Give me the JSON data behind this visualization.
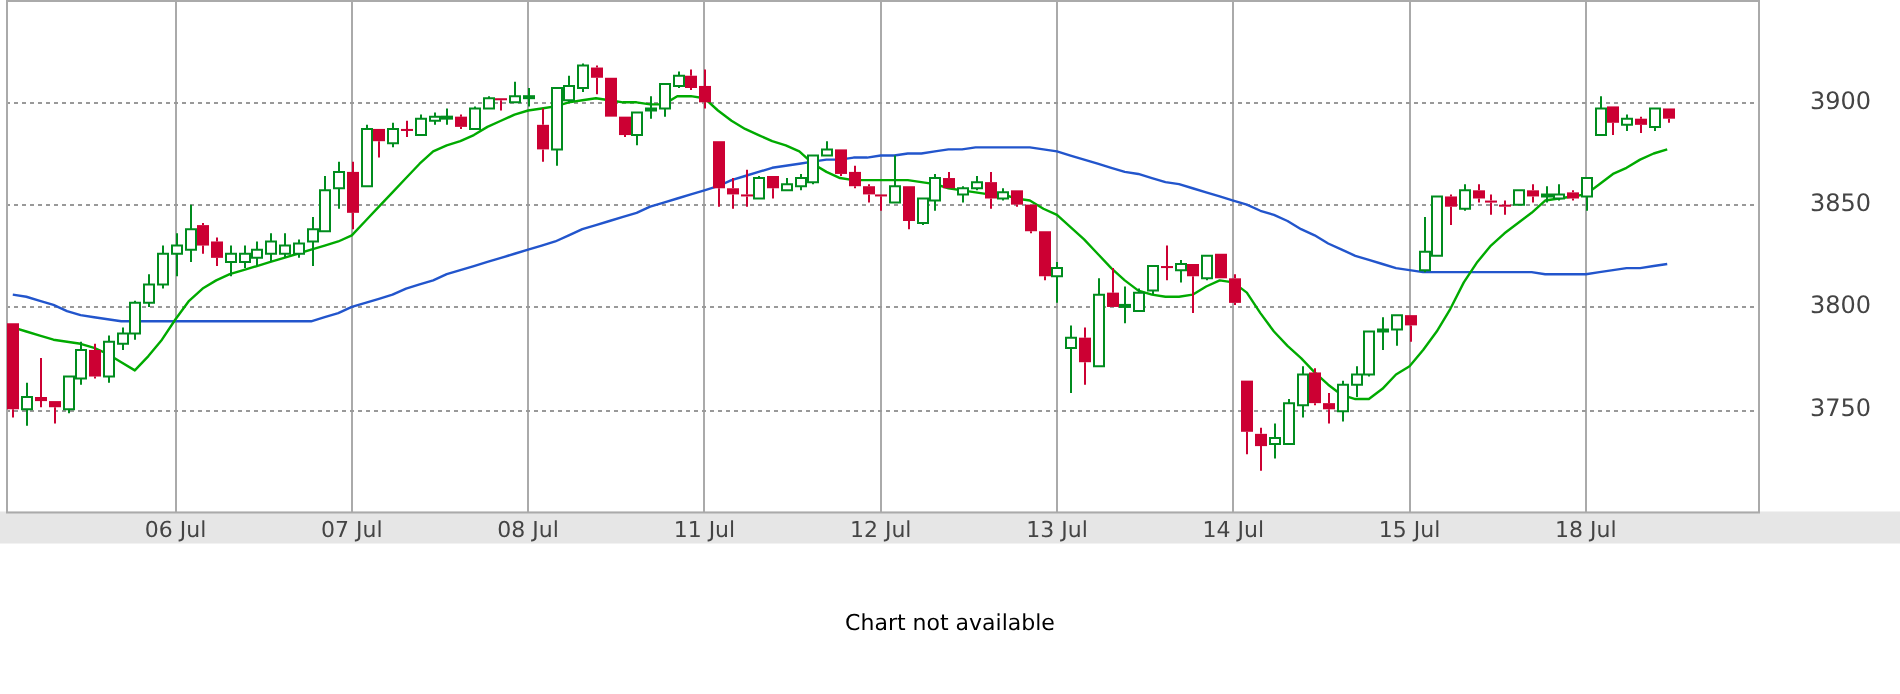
{
  "chart_data": {
    "type": "candlestick",
    "categories": [
      null,
      null,
      null,
      null,
      null,
      null,
      null,
      null,
      null,
      null,
      null,
      null,
      "06 Jul",
      null,
      null,
      null,
      null,
      null,
      null,
      null,
      null,
      null,
      null,
      null,
      null,
      "07 Jul",
      null,
      null,
      null,
      null,
      null,
      null,
      null,
      null,
      null,
      null,
      null,
      null,
      "08 Jul",
      null,
      null,
      null,
      null,
      null,
      null,
      null,
      null,
      null,
      null,
      null,
      null,
      "11 Jul",
      null,
      null,
      null,
      null,
      null,
      null,
      null,
      null,
      null,
      null,
      null,
      null,
      "12 Jul",
      null,
      null,
      null,
      null,
      null,
      null,
      null,
      null,
      null,
      null,
      null,
      null,
      "13 Jul",
      null,
      null,
      null,
      null,
      null,
      null,
      null,
      null,
      null,
      null,
      null,
      null,
      "14 Jul",
      null,
      null,
      null,
      null,
      null,
      null,
      null,
      null,
      null,
      null,
      null,
      null,
      "15 Jul",
      null,
      null,
      null,
      null,
      null,
      null,
      null,
      null,
      null,
      null,
      null,
      null,
      "18 Jul",
      null,
      null,
      null,
      null,
      null,
      null
    ],
    "ohlc": [
      [
        3792,
        3792,
        3746,
        3750
      ],
      [
        3750,
        3763,
        3742,
        3756
      ],
      [
        3756,
        3775,
        3751,
        3754
      ],
      [
        3754,
        3754,
        3743,
        3751
      ],
      [
        3750,
        3766,
        3748,
        3766
      ],
      [
        3765,
        3783,
        3762,
        3779
      ],
      [
        3779,
        3782,
        3765,
        3766
      ],
      [
        3766,
        3786,
        3763,
        3783
      ],
      [
        3782,
        3790,
        3779,
        3787
      ],
      [
        3787,
        3803,
        3784,
        3802
      ],
      [
        3802,
        3816,
        3800,
        3811
      ],
      [
        3811,
        3830,
        3809,
        3826
      ],
      [
        3826,
        3836,
        3815,
        3830
      ],
      [
        3828,
        3850,
        3822,
        3838
      ],
      [
        3840,
        3841,
        3826,
        3830
      ],
      [
        3832,
        3834,
        3820,
        3824
      ],
      [
        3822,
        3830,
        3815,
        3826
      ],
      [
        3822,
        3830,
        3819,
        3826
      ],
      [
        3824,
        3832,
        3820,
        3828
      ],
      [
        3826,
        3836,
        3822,
        3832
      ],
      [
        3826,
        3836,
        3824,
        3830
      ],
      [
        3826,
        3833,
        3824,
        3831
      ],
      [
        3832,
        3844,
        3820,
        3838
      ],
      [
        3837,
        3864,
        3837,
        3857
      ],
      [
        3858,
        3871,
        3848,
        3866
      ],
      [
        3866,
        3871,
        3838,
        3846
      ],
      [
        3859,
        3889,
        3859,
        3887
      ],
      [
        3887,
        3887,
        3873,
        3881
      ],
      [
        3880,
        3890,
        3878,
        3887
      ],
      [
        3887,
        3891,
        3883,
        3886
      ],
      [
        3884,
        3894,
        3884,
        3892
      ],
      [
        3891,
        3895,
        3889,
        3893
      ],
      [
        3893,
        3897,
        3889,
        3893
      ],
      [
        3893,
        3894,
        3887,
        3888
      ],
      [
        3887,
        3898,
        3887,
        3897
      ],
      [
        3897,
        3903,
        3897,
        3902
      ],
      [
        3902,
        3902,
        3896,
        3901
      ],
      [
        3900,
        3910,
        3900,
        3903
      ],
      [
        3903,
        3907,
        3898,
        3903
      ],
      [
        3889,
        3897,
        3871,
        3877
      ],
      [
        3877,
        3907,
        3869,
        3907
      ],
      [
        3901,
        3913,
        3900,
        3908
      ],
      [
        3907,
        3919,
        3905,
        3918
      ],
      [
        3917,
        3918,
        3904,
        3912
      ],
      [
        3912,
        3912,
        3893,
        3893
      ],
      [
        3893,
        3893,
        3883,
        3884
      ],
      [
        3884,
        3895,
        3879,
        3895
      ],
      [
        3896,
        3903,
        3892,
        3897
      ],
      [
        3897,
        3909,
        3893,
        3909
      ],
      [
        3908,
        3915,
        3907,
        3913
      ],
      [
        3913,
        3916,
        3906,
        3907
      ],
      [
        3908,
        3916,
        3897,
        3900
      ],
      [
        3881,
        3881,
        3849,
        3858
      ],
      [
        3858,
        3863,
        3848,
        3855
      ],
      [
        3855,
        3867,
        3849,
        3854
      ],
      [
        3853,
        3864,
        3853,
        3863
      ],
      [
        3864,
        3864,
        3853,
        3858
      ],
      [
        3857,
        3863,
        3857,
        3860
      ],
      [
        3859,
        3865,
        3857,
        3863
      ],
      [
        3861,
        3874,
        3860,
        3874
      ],
      [
        3874,
        3881,
        3874,
        3877
      ],
      [
        3877,
        3877,
        3864,
        3865
      ],
      [
        3866,
        3869,
        3858,
        3859
      ],
      [
        3859,
        3860,
        3851,
        3855
      ],
      [
        3855,
        3855,
        3847,
        3854
      ],
      [
        3851,
        3874,
        3851,
        3859
      ],
      [
        3859,
        3859,
        3838,
        3842
      ],
      [
        3841,
        3853,
        3840,
        3853
      ],
      [
        3852,
        3865,
        3847,
        3863
      ],
      [
        3863,
        3866,
        3858,
        3858
      ],
      [
        3855,
        3859,
        3851,
        3858
      ],
      [
        3858,
        3864,
        3857,
        3861
      ],
      [
        3861,
        3866,
        3848,
        3853
      ],
      [
        3853,
        3858,
        3852,
        3856
      ],
      [
        3857,
        3857,
        3849,
        3850
      ],
      [
        3850,
        3850,
        3836,
        3837
      ],
      [
        3837,
        3837,
        3813,
        3815
      ],
      [
        3815,
        3822,
        3802,
        3819
      ],
      [
        3780,
        3791,
        3758,
        3785
      ],
      [
        3785,
        3790,
        3762,
        3773
      ],
      [
        3771,
        3814,
        3771,
        3806
      ],
      [
        3807,
        3819,
        3800,
        3800
      ],
      [
        3801,
        3810,
        3792,
        3801
      ],
      [
        3798,
        3809,
        3798,
        3807
      ],
      [
        3808,
        3820,
        3806,
        3820
      ],
      [
        3820,
        3830,
        3813,
        3819
      ],
      [
        3818,
        3823,
        3812,
        3821
      ],
      [
        3821,
        3821,
        3797,
        3815
      ],
      [
        3814,
        3825,
        3813,
        3825
      ],
      [
        3826,
        3826,
        3814,
        3814
      ],
      [
        3814,
        3816,
        3801,
        3802
      ],
      [
        3764,
        3764,
        3728,
        3739
      ],
      [
        3738,
        3741,
        3720,
        3732
      ],
      [
        3733,
        3743,
        3726,
        3736
      ],
      [
        3733,
        3755,
        3733,
        3753
      ],
      [
        3752,
        3771,
        3746,
        3767
      ],
      [
        3768,
        3770,
        3752,
        3753
      ],
      [
        3753,
        3758,
        3743,
        3750
      ],
      [
        3749,
        3764,
        3744,
        3762
      ],
      [
        3762,
        3771,
        3756,
        3767
      ],
      [
        3767,
        3788,
        3766,
        3788
      ],
      [
        3788,
        3795,
        3779,
        3789
      ],
      [
        3789,
        3796,
        3781,
        3796
      ],
      [
        3796,
        3796,
        3783,
        3791
      ],
      [
        3818,
        3844,
        3817,
        3827
      ],
      [
        3825,
        3854,
        3825,
        3854
      ],
      [
        3854,
        3855,
        3840,
        3849
      ],
      [
        3848,
        3860,
        3847,
        3857
      ],
      [
        3857,
        3860,
        3851,
        3853
      ],
      [
        3852,
        3855,
        3845,
        3851
      ],
      [
        3850,
        3852,
        3845,
        3849
      ],
      [
        3850,
        3857,
        3850,
        3857
      ],
      [
        3857,
        3860,
        3851,
        3854
      ],
      [
        3854,
        3859,
        3851,
        3855
      ],
      [
        3853,
        3860,
        3852,
        3855
      ],
      [
        3856,
        3857,
        3852,
        3853
      ],
      [
        3854,
        3863,
        3847,
        3863
      ],
      [
        3884,
        3903,
        3884,
        3897
      ],
      [
        3898,
        3898,
        3884,
        3890
      ],
      [
        3889,
        3894,
        3886,
        3892
      ],
      [
        3892,
        3893,
        3885,
        3889
      ],
      [
        3888,
        3897,
        3886,
        3897
      ],
      [
        3897,
        3897,
        3890,
        3892
      ]
    ],
    "series": [
      {
        "type": "line",
        "color": "#00aa00",
        "values": [
          3790,
          3788,
          3786,
          3784,
          3783,
          3782,
          3780,
          3777,
          3773,
          3769,
          3776,
          3784,
          3794,
          3803,
          3809,
          3813,
          3816,
          3818,
          3820,
          3822,
          3824,
          3826,
          3828,
          3830,
          3832,
          3835,
          3842,
          3849,
          3856,
          3863,
          3870,
          3876,
          3879,
          3881,
          3884,
          3888,
          3891,
          3894,
          3896,
          3897,
          3898,
          3900,
          3901,
          3902,
          3901,
          3900,
          3900,
          3899,
          3899,
          3903,
          3903,
          3902,
          3896,
          3891,
          3887,
          3884,
          3881,
          3879,
          3876,
          3870,
          3866,
          3863,
          3862,
          3862,
          3862,
          3862,
          3862,
          3861,
          3860,
          3858,
          3857,
          3856,
          3855,
          3855,
          3853,
          3852,
          3848,
          3845,
          3839,
          3833,
          3826,
          3819,
          3813,
          3808,
          3806,
          3805,
          3805,
          3806,
          3810,
          3813,
          3812,
          3807,
          3797,
          3788,
          3781,
          3775,
          3768,
          3762,
          3757,
          3755,
          3755,
          3760,
          3767,
          3771,
          3779,
          3788,
          3799,
          3812,
          3822,
          3830,
          3836,
          3841,
          3846,
          3852,
          3853,
          3854,
          3855,
          3860,
          3865,
          3868,
          3872,
          3875,
          3877
        ]
      },
      {
        "type": "line",
        "color": "#2255cc",
        "values": [
          3806,
          3805,
          3803,
          3801,
          3798,
          3796,
          3795,
          3794,
          3793,
          3793,
          3793,
          3793,
          3793,
          3793,
          3793,
          3793,
          3793,
          3793,
          3793,
          3793,
          3793,
          3793,
          3793,
          3795,
          3797,
          3800,
          3802,
          3804,
          3806,
          3809,
          3811,
          3813,
          3816,
          3818,
          3820,
          3822,
          3824,
          3826,
          3828,
          3830,
          3832,
          3835,
          3838,
          3840,
          3842,
          3844,
          3846,
          3849,
          3851,
          3853,
          3855,
          3857,
          3859,
          3862,
          3864,
          3866,
          3868,
          3869,
          3870,
          3871,
          3872,
          3872,
          3873,
          3873,
          3874,
          3874,
          3875,
          3875,
          3876,
          3877,
          3877,
          3878,
          3878,
          3878,
          3878,
          3878,
          3877,
          3876,
          3874,
          3872,
          3870,
          3868,
          3866,
          3865,
          3863,
          3861,
          3860,
          3858,
          3856,
          3854,
          3852,
          3850,
          3847,
          3845,
          3842,
          3838,
          3835,
          3831,
          3828,
          3825,
          3823,
          3821,
          3819,
          3818,
          3817,
          3817,
          3817,
          3817,
          3817,
          3817,
          3817,
          3817,
          3817,
          3816,
          3816,
          3816,
          3816,
          3817,
          3818,
          3819,
          3819,
          3820,
          3821
        ]
      }
    ],
    "ylim": [
      3700,
      3950
    ],
    "yticks": [
      3750,
      3800,
      3850,
      3900
    ],
    "grid": true,
    "annotations": [
      "Chart not available"
    ]
  }
}
